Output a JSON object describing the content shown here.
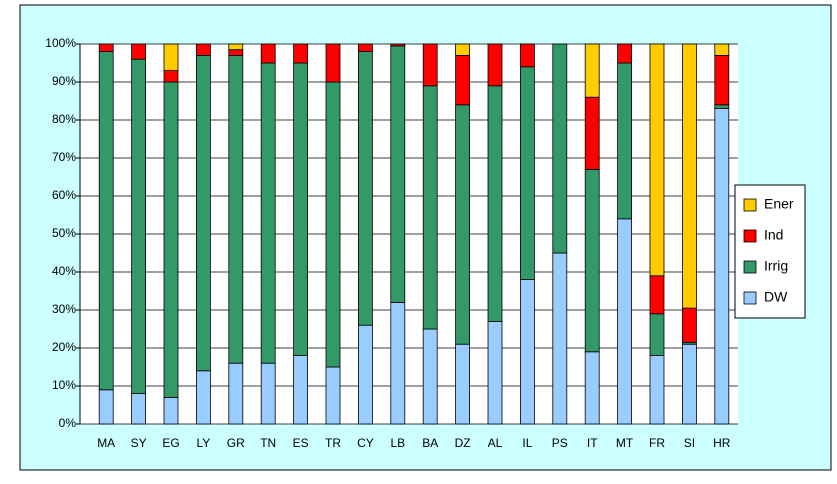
{
  "chart_data": {
    "type": "stacked_bar_100",
    "categories": [
      "MA",
      "SY",
      "EG",
      "LY",
      "GR",
      "TN",
      "ES",
      "TR",
      "CY",
      "LB",
      "BA",
      "DZ",
      "AL",
      "IL",
      "PS",
      "IT",
      "MT",
      "FR",
      "SI",
      "HR"
    ],
    "series": [
      {
        "name": "DW",
        "color": "#99ccff",
        "values": [
          9,
          8,
          7,
          14,
          16,
          16,
          18,
          15,
          26,
          32,
          25,
          21,
          27,
          38,
          45,
          19,
          54,
          18,
          21,
          83
        ]
      },
      {
        "name": "Irrig",
        "color": "#339966",
        "values": [
          89,
          88,
          83,
          83,
          81,
          79,
          77,
          75,
          72,
          67.5,
          64,
          63,
          62,
          56,
          55,
          48,
          41,
          11,
          0.5,
          1
        ]
      },
      {
        "name": "Ind",
        "color": "#ff0000",
        "values": [
          2,
          4,
          3,
          3,
          1.5,
          5,
          5,
          10,
          2,
          0.5,
          11,
          13,
          11,
          6,
          0,
          19,
          5,
          10,
          9,
          13
        ]
      },
      {
        "name": "Ener",
        "color": "#ffcc00",
        "values": [
          0,
          0,
          7,
          0,
          1.5,
          0,
          0,
          0,
          0,
          0,
          0,
          3,
          0,
          0,
          0,
          14,
          0,
          61,
          69.5,
          3
        ]
      }
    ],
    "ylim": [
      0,
      100
    ],
    "yticks": [
      {
        "value": 0,
        "label": "0%"
      },
      {
        "value": 10,
        "label": "10%"
      },
      {
        "value": 20,
        "label": "20%"
      },
      {
        "value": 30,
        "label": "30%"
      },
      {
        "value": 40,
        "label": "40%"
      },
      {
        "value": 50,
        "label": "50%"
      },
      {
        "value": 60,
        "label": "60%"
      },
      {
        "value": 70,
        "label": "70%"
      },
      {
        "value": 80,
        "label": "80%"
      },
      {
        "value": 90,
        "label": "90%"
      },
      {
        "value": 100,
        "label": "100%"
      }
    ],
    "grid": true,
    "legend": "right"
  }
}
